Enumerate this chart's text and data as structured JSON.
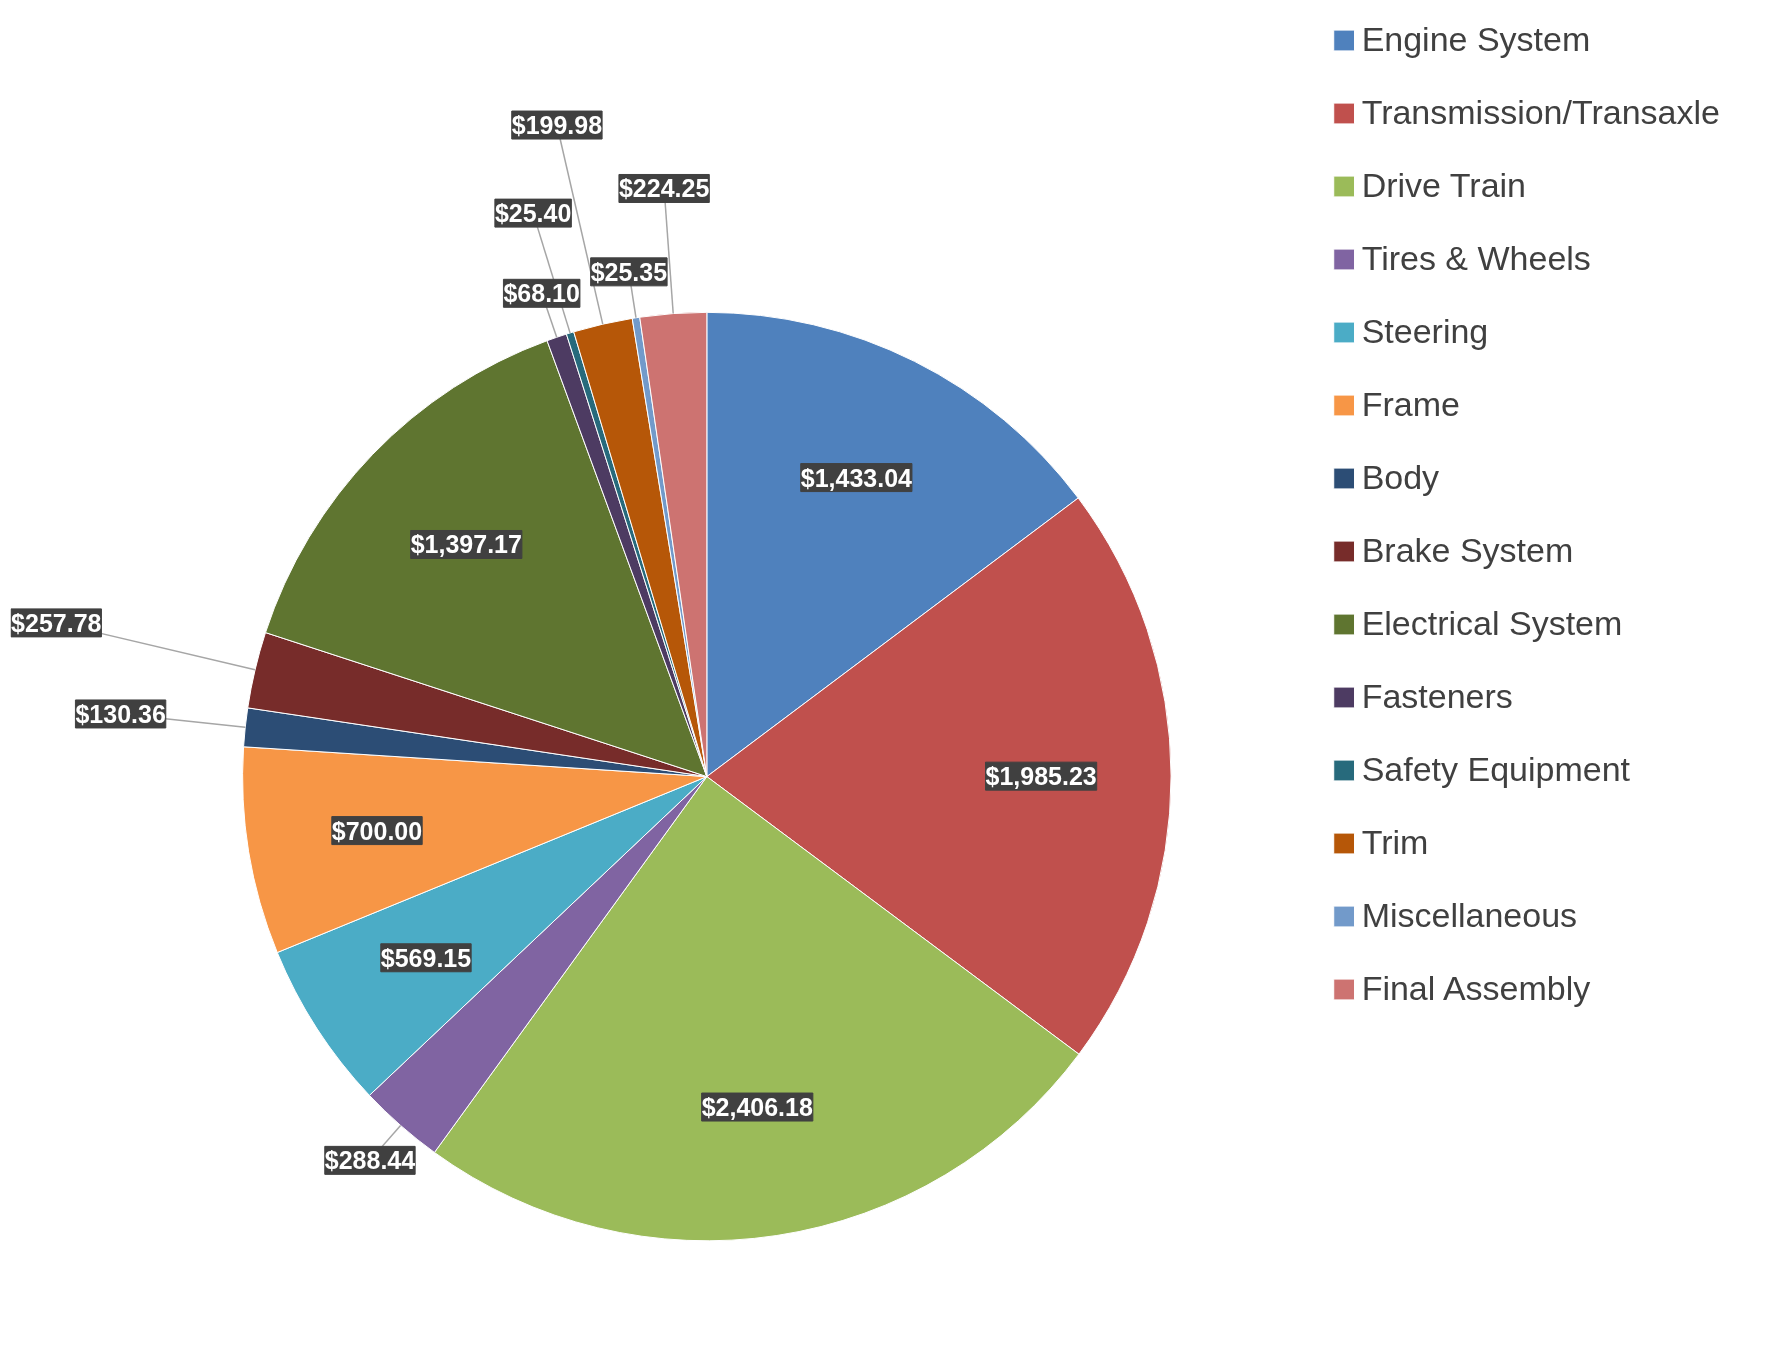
{
  "chart_data": {
    "type": "pie",
    "categories": [
      "Engine System",
      "Transmission/Transaxle",
      "Drive Train",
      "Tires & Wheels",
      "Steering",
      "Frame",
      "Body",
      "Brake System",
      "Electrical System",
      "Fasteners",
      "Safety Equipment",
      "Trim",
      "Miscellaneous",
      "Final Assembly"
    ],
    "values": [
      1433.04,
      1985.23,
      2406.18,
      288.44,
      569.15,
      700.0,
      130.36,
      257.78,
      1397.17,
      68.1,
      25.4,
      199.98,
      25.35,
      224.25
    ],
    "value_labels": [
      "$1,433.04",
      "$1,985.23",
      "$2,406.18",
      "$288.44",
      "$569.15",
      "$700.00",
      "$130.36",
      "$257.78",
      "$1,397.17",
      "$68.10",
      "$25.40",
      "$199.98",
      "$25.35",
      "$224.25"
    ],
    "colors": [
      "#4f81bd",
      "#c0504d",
      "#9bbb59",
      "#8064a2",
      "#4bacc6",
      "#f79646",
      "#2c4d75",
      "#772c2a",
      "#5f7530",
      "#4d3b62",
      "#276a7c",
      "#b65708",
      "#729aca",
      "#cd7371"
    ],
    "legend": "right"
  }
}
